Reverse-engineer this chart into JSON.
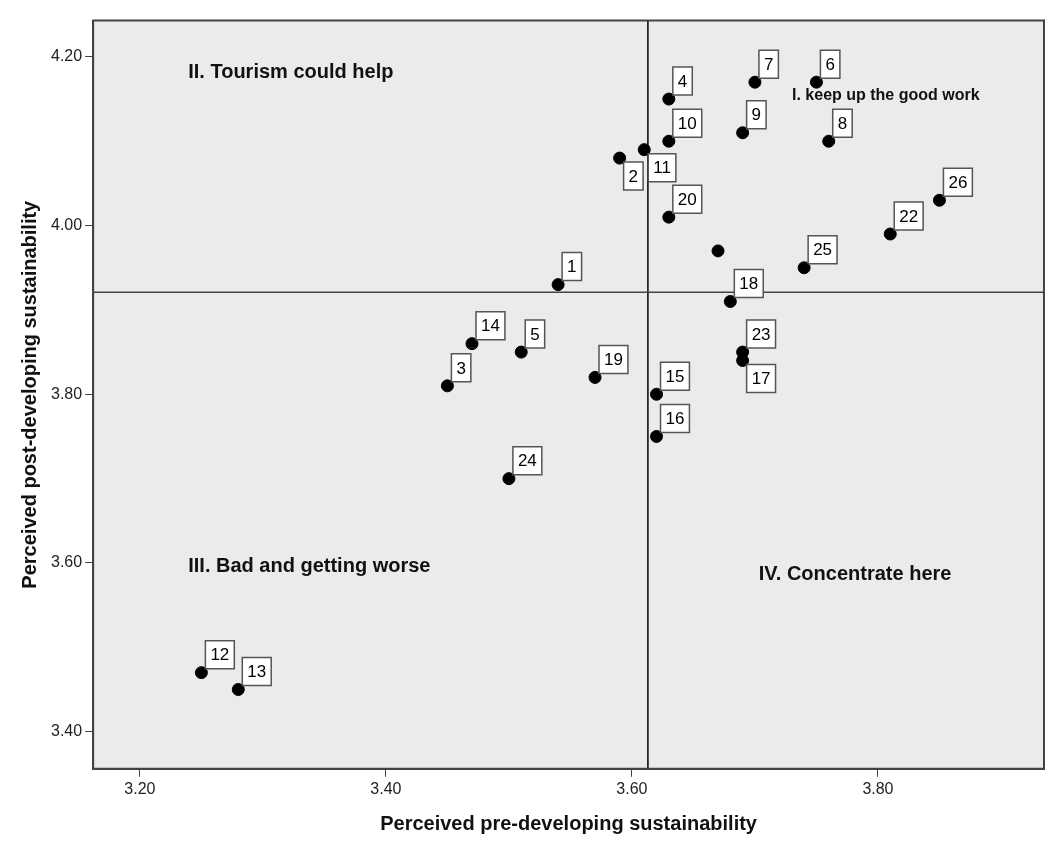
{
  "chart_data": {
    "type": "scatter",
    "xlabel": "Perceived pre-developing sustainability",
    "ylabel": "Perceived post-developing sustainability",
    "series": [
      {
        "name": "1",
        "color": "#000000",
        "x": [
          3.54
        ],
        "values": [
          3.93
        ]
      },
      {
        "name": "2",
        "color": "#000000",
        "x": [
          3.59
        ],
        "values": [
          4.08
        ]
      },
      {
        "name": "3",
        "color": "#000000",
        "x": [
          3.45
        ],
        "values": [
          3.81
        ]
      },
      {
        "name": "4",
        "color": "#000000",
        "x": [
          3.63
        ],
        "values": [
          4.15
        ]
      },
      {
        "name": "5",
        "color": "#000000",
        "x": [
          3.51
        ],
        "values": [
          3.85
        ]
      },
      {
        "name": "6",
        "color": "#000000",
        "x": [
          3.75
        ],
        "values": [
          4.17
        ]
      },
      {
        "name": "7",
        "color": "#000000",
        "x": [
          3.7
        ],
        "values": [
          4.17
        ]
      },
      {
        "name": "8",
        "color": "#000000",
        "x": [
          3.76
        ],
        "values": [
          4.1
        ]
      },
      {
        "name": "9",
        "color": "#000000",
        "x": [
          3.69
        ],
        "values": [
          4.11
        ]
      },
      {
        "name": "10",
        "color": "#000000",
        "x": [
          3.63
        ],
        "values": [
          4.1
        ]
      },
      {
        "name": "11",
        "color": "#000000",
        "x": [
          3.61
        ],
        "values": [
          4.09
        ]
      },
      {
        "name": "12",
        "color": "#000000",
        "x": [
          3.25
        ],
        "values": [
          3.47
        ]
      },
      {
        "name": "13",
        "color": "#000000",
        "x": [
          3.28
        ],
        "values": [
          3.45
        ]
      },
      {
        "name": "14",
        "color": "#000000",
        "x": [
          3.47
        ],
        "values": [
          3.86
        ]
      },
      {
        "name": "15",
        "color": "#000000",
        "x": [
          3.62
        ],
        "values": [
          3.8
        ]
      },
      {
        "name": "16",
        "color": "#000000",
        "x": [
          3.62
        ],
        "values": [
          3.75
        ]
      },
      {
        "name": "17",
        "color": "#000000",
        "x": [
          3.69
        ],
        "values": [
          3.84
        ]
      },
      {
        "name": "18",
        "color": "#000000",
        "x": [
          3.68
        ],
        "values": [
          3.91
        ]
      },
      {
        "name": "19",
        "color": "#000000",
        "x": [
          3.57
        ],
        "values": [
          3.82
        ]
      },
      {
        "name": "20",
        "color": "#000000",
        "x": [
          3.63
        ],
        "values": [
          4.01
        ]
      },
      {
        "color": "#000000",
        "x": [
          3.67
        ],
        "values": [
          3.97
        ]
      },
      {
        "name": "22",
        "color": "#000000",
        "x": [
          3.81
        ],
        "values": [
          3.99
        ]
      },
      {
        "name": "23",
        "color": "#000000",
        "x": [
          3.69
        ],
        "values": [
          3.85
        ]
      },
      {
        "name": "24",
        "color": "#000000",
        "x": [
          3.5
        ],
        "values": [
          3.7
        ]
      },
      {
        "name": "25",
        "color": "#000000",
        "x": [
          3.74
        ],
        "values": [
          3.95
        ]
      },
      {
        "name": "26",
        "color": "#000000",
        "x": [
          3.85
        ],
        "values": [
          4.03
        ]
      }
    ],
    "xlim": [
      3.162,
      3.935
    ],
    "ylim": [
      3.356,
      4.243
    ],
    "xticks": [
      {
        "value": 3.2,
        "label": "3.20"
      },
      {
        "value": 3.4,
        "label": "3.40"
      },
      {
        "value": 3.6,
        "label": "3.60"
      },
      {
        "value": 3.8,
        "label": "3.80"
      }
    ],
    "yticks": [
      {
        "value": 3.4,
        "label": "3.40"
      },
      {
        "value": 3.6,
        "label": "3.60"
      },
      {
        "value": 3.8,
        "label": "3.80"
      },
      {
        "value": 4.0,
        "label": "4.00"
      },
      {
        "value": 4.2,
        "label": "4.20"
      }
    ],
    "ref_lines": [
      {
        "axis": "x",
        "value": 3.613,
        "color": "#000000"
      },
      {
        "axis": "y",
        "value": 3.921,
        "color": "#444444"
      }
    ],
    "annotations": [
      "II. Tourism could help",
      "I. keep up the good work",
      "III. Bad and getting worse",
      "IV. Concentrate here"
    ],
    "grid": false,
    "legend": false,
    "marker": "circle"
  }
}
